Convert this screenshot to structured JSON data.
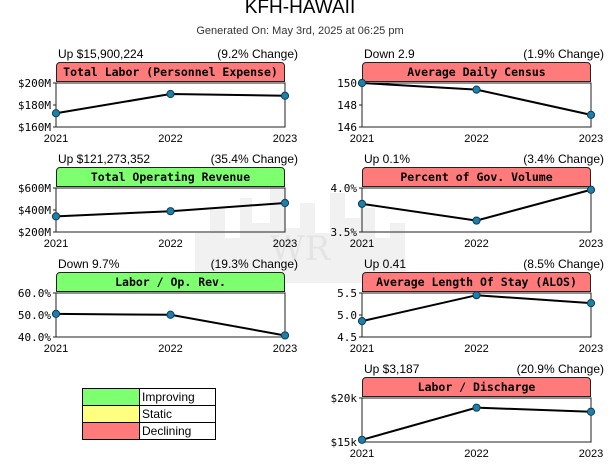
{
  "page": {
    "title": "KFH-HAWAII",
    "subtitle": "Generated On: May 3rd, 2025 at 06:25 pm"
  },
  "legend": [
    {
      "label": "Improving",
      "color": "#7dff6f"
    },
    {
      "label": "Static",
      "color": "#ffff80"
    },
    {
      "label": "Declining",
      "color": "#ff7a7a"
    }
  ],
  "colors": {
    "improving": "#7dff6f",
    "static": "#ffff80",
    "declining": "#ff7a7a",
    "line": "#000000",
    "marker": "#1f7fa8"
  },
  "panels": [
    {
      "title": "Total Labor (Personnel Expense)",
      "change_left": "Up $15,900,224",
      "change_right": "(9.2% Change)",
      "status": "declining"
    },
    {
      "title": "Average Daily Census",
      "change_left": "Down 2.9",
      "change_right": "(1.9% Change)",
      "status": "declining"
    },
    {
      "title": "Total Operating Revenue",
      "change_left": "Up $121,273,352",
      "change_right": "(35.4% Change)",
      "status": "improving"
    },
    {
      "title": "Percent of Gov. Volume",
      "change_left": "Up 0.1%",
      "change_right": "(3.4% Change)",
      "status": "declining"
    },
    {
      "title": "Labor / Op. Rev.",
      "change_left": "Down 9.7%",
      "change_right": "(19.3% Change)",
      "status": "improving"
    },
    {
      "title": "Average Length Of Stay (ALOS)",
      "change_left": "Up 0.41",
      "change_right": "(8.5% Change)",
      "status": "declining"
    },
    {
      "title": "Labor / Discharge",
      "change_left": "Up $3,187",
      "change_right": "(20.9% Change)",
      "status": "declining"
    }
  ],
  "chart_data": [
    {
      "type": "line",
      "title": "Total Labor (Personnel Expense)",
      "x": [
        "2021",
        "2022",
        "2023"
      ],
      "values": [
        172500000,
        190000000,
        188400000
      ],
      "ylim": [
        160000000,
        200000000
      ],
      "yticks": [
        160000000,
        180000000,
        200000000
      ],
      "ytick_labels": [
        "$160M",
        "$180M",
        "$200M"
      ]
    },
    {
      "type": "line",
      "title": "Average Daily Census",
      "x": [
        "2021",
        "2022",
        "2023"
      ],
      "values": [
        150.0,
        149.4,
        147.1
      ],
      "ylim": [
        146,
        150
      ],
      "yticks": [
        146,
        148,
        150
      ],
      "ytick_labels": [
        "146",
        "148",
        "150"
      ]
    },
    {
      "type": "line",
      "title": "Total Operating Revenue",
      "x": [
        "2021",
        "2022",
        "2023"
      ],
      "values": [
        342000000,
        389000000,
        463300000
      ],
      "ylim": [
        200000000,
        600000000
      ],
      "yticks": [
        200000000,
        400000000,
        600000000
      ],
      "ytick_labels": [
        "$200M",
        "$400M",
        "$600M"
      ]
    },
    {
      "type": "line",
      "title": "Percent of Gov. Volume",
      "x": [
        "2021",
        "2022",
        "2023"
      ],
      "values": [
        3.82,
        3.63,
        3.98
      ],
      "ylim": [
        3.5,
        4.0
      ],
      "yticks": [
        3.5,
        4.0
      ],
      "ytick_labels": [
        "3.5%",
        "4.0%"
      ]
    },
    {
      "type": "line",
      "title": "Labor / Op. Rev.",
      "x": [
        "2021",
        "2022",
        "2023"
      ],
      "values": [
        50.5,
        50.1,
        40.7
      ],
      "ylim": [
        40,
        60
      ],
      "yticks": [
        40,
        50,
        60
      ],
      "ytick_labels": [
        "40.0%",
        "50.0%",
        "60.0%"
      ]
    },
    {
      "type": "line",
      "title": "Average Length Of Stay (ALOS)",
      "x": [
        "2021",
        "2022",
        "2023"
      ],
      "values": [
        4.86,
        5.45,
        5.27
      ],
      "ylim": [
        4.5,
        5.5
      ],
      "yticks": [
        4.5,
        5.0,
        5.5
      ],
      "ytick_labels": [
        "4.5",
        "5.0",
        "5.5"
      ]
    },
    {
      "type": "line",
      "title": "Labor / Discharge",
      "x": [
        "2021",
        "2022",
        "2023"
      ],
      "values": [
        15250,
        18900,
        18437
      ],
      "ylim": [
        15000,
        20000
      ],
      "yticks": [
        15000,
        20000
      ],
      "ytick_labels": [
        "$15k",
        "$20k"
      ]
    }
  ]
}
